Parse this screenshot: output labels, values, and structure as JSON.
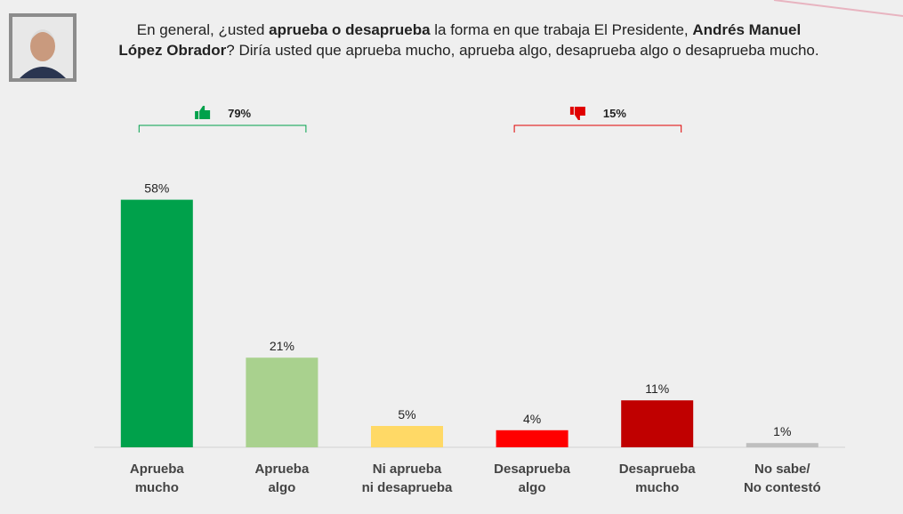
{
  "chart_data": {
    "type": "bar",
    "title_lines": [
      [
        {
          "text": "En general, ¿usted ",
          "bold": false
        },
        {
          "text": "aprueba o desaprueba",
          "bold": true
        },
        {
          "text": " la forma en que trabaja El Presidente, ",
          "bold": false
        },
        {
          "text": "Andrés Manuel",
          "bold": true
        }
      ],
      [
        {
          "text": "López Obrador",
          "bold": true
        },
        {
          "text": "? Diría usted que aprueba mucho, aprueba algo, desaprueba algo o desaprueba mucho.",
          "bold": false
        }
      ]
    ],
    "categories": [
      [
        "Aprueba",
        "mucho"
      ],
      [
        "Aprueba",
        "algo"
      ],
      [
        "Ni aprueba",
        "ni desaprueba"
      ],
      [
        "Desaprueba",
        "algo"
      ],
      [
        "Desaprueba",
        "mucho"
      ],
      [
        "No sabe/",
        "No contestó"
      ]
    ],
    "values": [
      58,
      21,
      5,
      4,
      11,
      1
    ],
    "value_labels": [
      "58%",
      "21%",
      "5%",
      "4%",
      "11%",
      "1%"
    ],
    "colors": [
      "#00a14b",
      "#a9d18e",
      "#ffd966",
      "#ff0000",
      "#c00000",
      "#bfbfbf"
    ],
    "groups": [
      {
        "label": "79%",
        "color": "#00a14b",
        "icon": "up",
        "span": [
          0,
          1
        ]
      },
      {
        "label": "15%",
        "color": "#e00000",
        "icon": "down",
        "span": [
          3,
          4
        ]
      }
    ]
  }
}
